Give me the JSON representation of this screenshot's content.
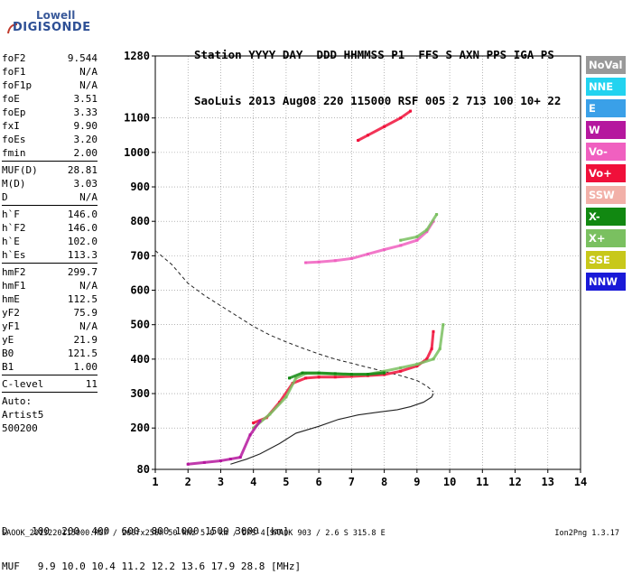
{
  "logo": {
    "line1": "Lowell",
    "line2": "DIGISONDE"
  },
  "header": {
    "line1": "Station YYYY DAY  DDD HHMMSS P1  FFS S AXN PPS IGA PS",
    "line2": "SaoLuis 2013 Aug08 220 115000 RSF 005 2 713 100 10+ 22"
  },
  "params": {
    "group1": [
      {
        "k": "foF2",
        "v": "9.544"
      },
      {
        "k": "foF1",
        "v": "N/A"
      },
      {
        "k": "foF1p",
        "v": "N/A"
      },
      {
        "k": "foE",
        "v": "3.51"
      },
      {
        "k": "foEp",
        "v": "3.33"
      },
      {
        "k": "fxI",
        "v": "9.90"
      },
      {
        "k": "foEs",
        "v": "3.20"
      },
      {
        "k": "fmin",
        "v": "2.00"
      }
    ],
    "group2": [
      {
        "k": "MUF(D)",
        "v": "28.81"
      },
      {
        "k": "M(D)",
        "v": "3.03"
      },
      {
        "k": "D",
        "v": "N/A"
      }
    ],
    "group3": [
      {
        "k": "h`F",
        "v": "146.0"
      },
      {
        "k": "h`F2",
        "v": "146.0"
      },
      {
        "k": "h`E",
        "v": "102.0"
      },
      {
        "k": "h`Es",
        "v": "113.3"
      }
    ],
    "group4": [
      {
        "k": "hmF2",
        "v": "299.7"
      },
      {
        "k": "hmF1",
        "v": "N/A"
      },
      {
        "k": "hmE",
        "v": "112.5"
      },
      {
        "k": "yF2",
        "v": "75.9"
      },
      {
        "k": "yF1",
        "v": "N/A"
      },
      {
        "k": "yE",
        "v": "21.9"
      },
      {
        "k": "B0",
        "v": "121.5"
      },
      {
        "k": "B1",
        "v": "1.00"
      }
    ],
    "group5": [
      {
        "k": "C-level",
        "v": "11"
      }
    ],
    "auto": [
      "Auto:",
      "Artist5",
      "500200"
    ]
  },
  "legend": [
    {
      "label": "NoVal",
      "color": "#999999"
    },
    {
      "label": "NNE",
      "color": "#22d3f0"
    },
    {
      "label": "E",
      "color": "#3aa0e8"
    },
    {
      "label": "W",
      "color": "#b5179e"
    },
    {
      "label": "Vo-",
      "color": "#f060c0"
    },
    {
      "label": "Vo+",
      "color": "#f0103a"
    },
    {
      "label": "SSW",
      "color": "#f2b0a8"
    },
    {
      "label": "X-",
      "color": "#118811"
    },
    {
      "label": "X+",
      "color": "#7ac060"
    },
    {
      "label": "SSE",
      "color": "#c8c81a"
    },
    {
      "label": "NNW",
      "color": "#1a1ad8"
    }
  ],
  "footer": {
    "line1": "D    100  200  400  600  800 1000 1500 3000 [km]",
    "line2": "MUF   9.9 10.0 10.4 11.2 12.2 13.6 17.9 28.8 [MHz]",
    "info": "SAOOK_2013220115000.RSF / 260fx256h 50 kHz 5.0 km / DPS-4 SAAOK 903 / 2.6 S 315.8 E",
    "version": "Ion2Png 1.3.17"
  },
  "chart_data": {
    "type": "scatter",
    "xlim": [
      1,
      14
    ],
    "ylim": [
      80,
      1280
    ],
    "x_ticks": [
      1,
      2,
      3,
      4,
      5,
      6,
      7,
      8,
      9,
      10,
      11,
      12,
      13,
      14
    ],
    "y_ticks": [
      80,
      200,
      300,
      400,
      500,
      600,
      700,
      800,
      900,
      1000,
      1100,
      1280
    ],
    "grid": true,
    "legend_position": "right",
    "series": [
      {
        "name": "Vo+",
        "color": "#f0103a",
        "x": [
          4.0,
          4.4,
          4.8,
          5.2,
          5.6,
          6.0,
          6.5,
          7.0,
          7.5,
          8.0,
          8.5,
          9.0,
          9.3,
          9.45,
          9.5
        ],
        "y": [
          215,
          230,
          275,
          330,
          345,
          348,
          348,
          350,
          352,
          355,
          365,
          380,
          400,
          430,
          480
        ]
      },
      {
        "name": "X+",
        "color": "#7ac060",
        "x": [
          4.0,
          4.5,
          5.0,
          5.3,
          5.6,
          6.0,
          6.5,
          7.0,
          7.5,
          8.0,
          8.5,
          9.0,
          9.5,
          9.7,
          9.8
        ],
        "y": [
          200,
          240,
          290,
          345,
          358,
          358,
          356,
          355,
          356,
          365,
          375,
          385,
          400,
          430,
          500
        ]
      },
      {
        "name": "X-",
        "color": "#118811",
        "x": [
          5.1,
          5.5,
          6.0,
          6.5,
          7.0,
          7.5,
          8.0
        ],
        "y": [
          345,
          360,
          360,
          358,
          356,
          356,
          360
        ]
      },
      {
        "name": "W",
        "color": "#b5179e",
        "x": [
          2.0,
          2.5,
          3.0,
          3.3,
          3.6,
          3.9,
          4.2
        ],
        "y": [
          95,
          100,
          105,
          110,
          115,
          180,
          220
        ]
      },
      {
        "name": "Vo- (2nd hop)",
        "color": "#f060c0",
        "x": [
          5.6,
          6.0,
          6.5,
          7.0,
          7.5,
          8.0,
          8.5,
          9.0,
          9.3,
          9.5
        ],
        "y": [
          680,
          682,
          686,
          692,
          705,
          718,
          730,
          745,
          770,
          800
        ]
      },
      {
        "name": "X+ (2nd hop)",
        "color": "#7ac060",
        "x": [
          8.5,
          9.0,
          9.3,
          9.6
        ],
        "y": [
          745,
          755,
          775,
          820
        ]
      },
      {
        "name": "Vo+ (3rd hop)",
        "color": "#f0103a",
        "x": [
          7.2,
          7.5,
          8.0,
          8.5,
          8.8
        ],
        "y": [
          1035,
          1050,
          1075,
          1100,
          1120
        ]
      }
    ]
  }
}
